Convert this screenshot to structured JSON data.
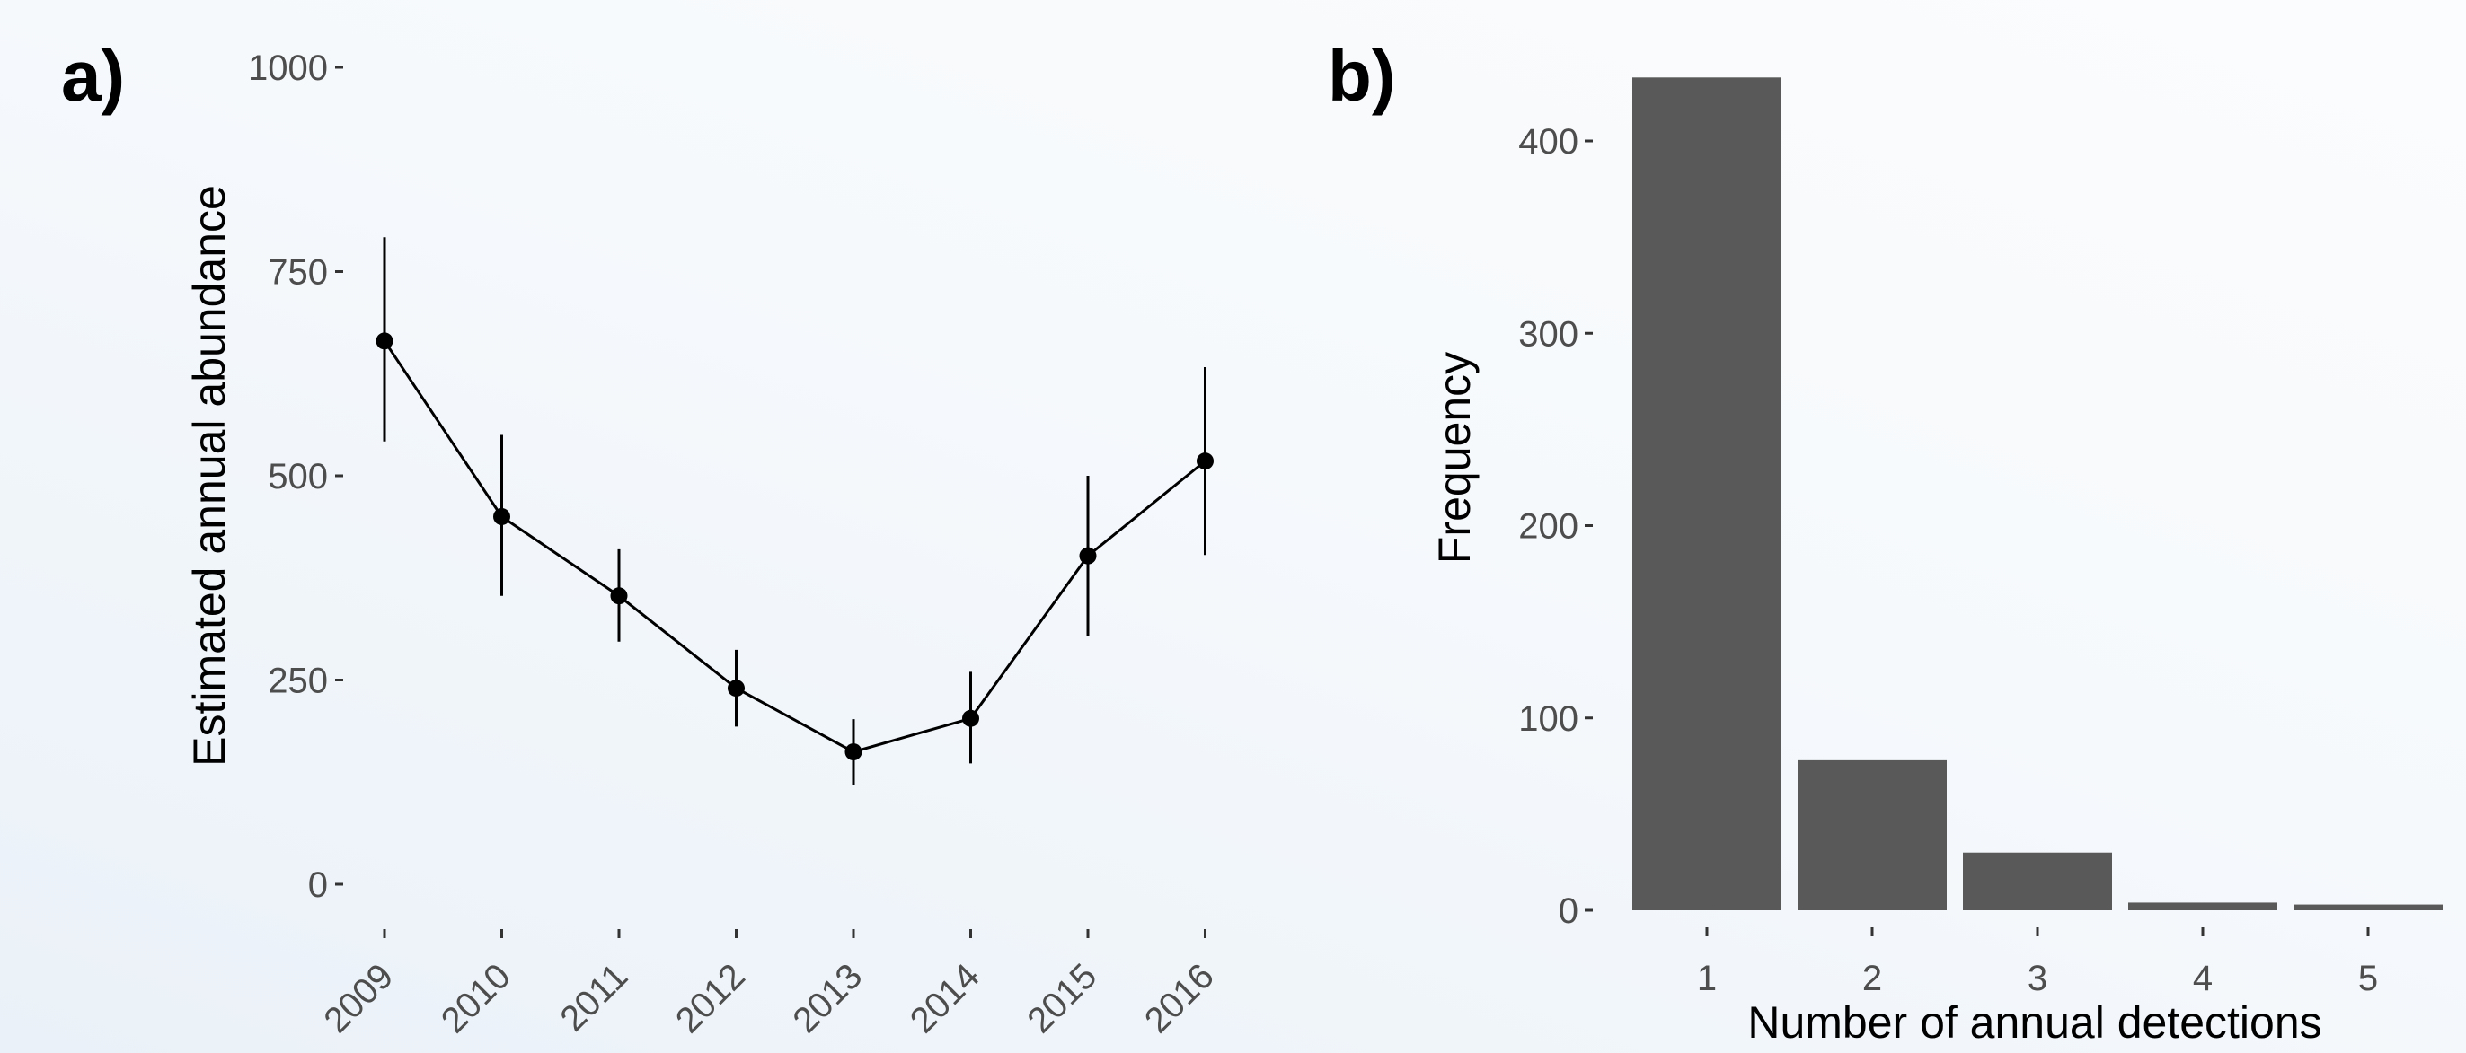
{
  "chart_data": [
    {
      "panel_label": "a)",
      "type": "line",
      "xlabel": "",
      "ylabel": "Estimated annual abundance",
      "x": [
        "2009",
        "2010",
        "2011",
        "2012",
        "2013",
        "2014",
        "2015",
        "2016"
      ],
      "series": [
        {
          "values": [
            665,
            450,
            353,
            240,
            162,
            203,
            402,
            518
          ],
          "lower": [
            542,
            353,
            297,
            193,
            122,
            148,
            304,
            403
          ],
          "upper": [
            792,
            550,
            410,
            287,
            202,
            260,
            500,
            633
          ]
        }
      ],
      "ylim": [
        -60,
        1000
      ],
      "yticks": [
        0,
        250,
        500,
        750,
        1000
      ],
      "ytick_labels": [
        "0",
        "250",
        "500",
        "750",
        "1000"
      ],
      "grid": false
    },
    {
      "panel_label": "b)",
      "type": "bar",
      "xlabel": "Number of annual detections",
      "ylabel": "Frequency",
      "categories": [
        "1",
        "2",
        "3",
        "4",
        "5"
      ],
      "values": [
        433,
        78,
        30,
        4,
        3
      ],
      "ylim": [
        0,
        433
      ],
      "yticks": [
        0,
        100,
        200,
        300,
        400
      ],
      "ytick_labels": [
        "0",
        "100",
        "200",
        "300",
        "400"
      ],
      "bar_color": "#595959",
      "grid": false
    }
  ]
}
